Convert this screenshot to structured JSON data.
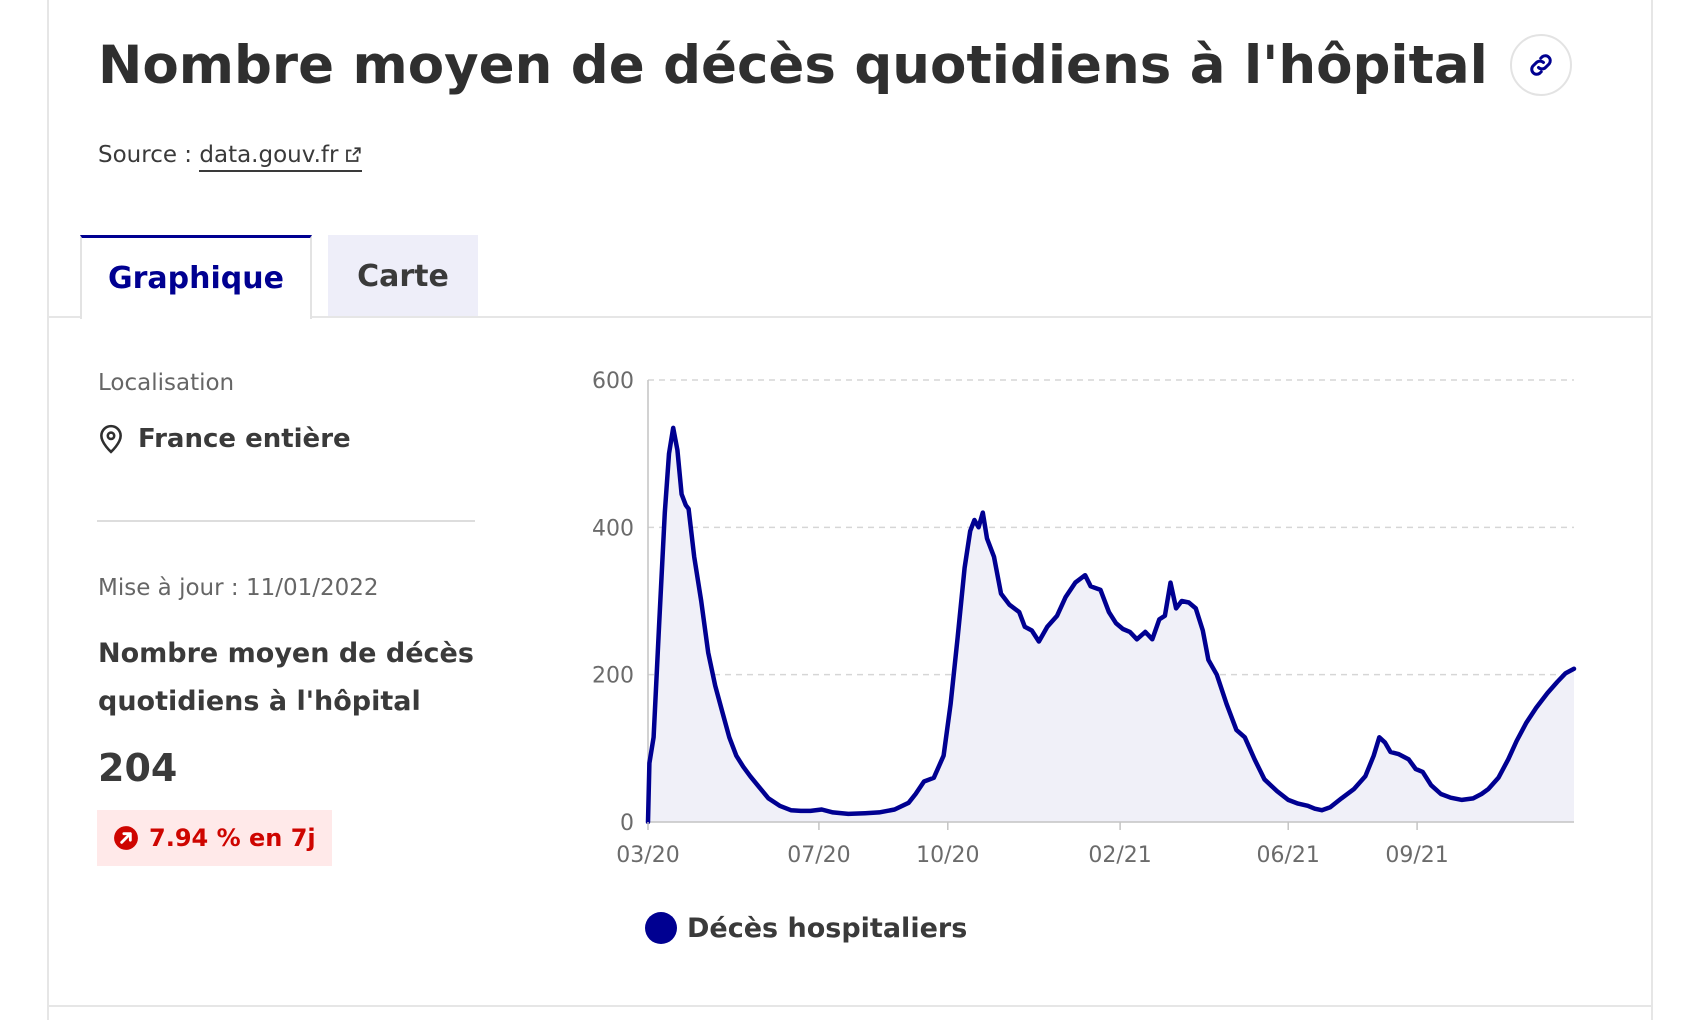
{
  "title": "Nombre moyen de décès quotidiens à l'hôpital",
  "source": {
    "prefix": "Source :",
    "link_text": "data.gouv.fr"
  },
  "tabs": [
    {
      "label": "Graphique",
      "active": true
    },
    {
      "label": "Carte",
      "active": false
    }
  ],
  "sidebar": {
    "location_label": "Localisation",
    "location_value": "France entière",
    "update_text": "Mise à jour : 11/01/2022",
    "indicator_title": "Nombre moyen de décès quotidiens à l'hôpital",
    "indicator_value": "204",
    "trend_text": "7.94 % en 7j"
  },
  "colors": {
    "accent": "#000091",
    "area_fill": "#f0f0f8",
    "trend_red": "#ce0500",
    "trend_bg": "#ffe9e9",
    "inactive_tab_bg": "#eeeef9"
  },
  "icons": {
    "link": "link-icon",
    "external": "external-link-icon",
    "location": "location-pin-icon",
    "trend": "trend-up-arrow-icon"
  },
  "chart_data": {
    "type": "area",
    "ylim": [
      0,
      600
    ],
    "yticks": [
      0,
      200,
      400,
      600
    ],
    "x_ticks": [
      {
        "label": "03/20",
        "date": "2020-03-18"
      },
      {
        "label": "07/20",
        "date": "2020-07-18"
      },
      {
        "label": "10/20",
        "date": "2020-10-18"
      },
      {
        "label": "02/21",
        "date": "2021-02-18"
      },
      {
        "label": "06/21",
        "date": "2021-06-18"
      },
      {
        "label": "09/21",
        "date": "2021-09-18"
      }
    ],
    "x_range": [
      "2020-03-18",
      "2022-01-08"
    ],
    "grid": true,
    "legend_position": "bottom-left",
    "series": [
      {
        "name": "Décès hospitaliers",
        "points": [
          [
            "2020-03-18",
            0
          ],
          [
            "2020-03-19",
            80
          ],
          [
            "2020-03-22",
            115
          ],
          [
            "2020-03-26",
            270
          ],
          [
            "2020-03-30",
            420
          ],
          [
            "2020-04-02",
            500
          ],
          [
            "2020-04-05",
            535
          ],
          [
            "2020-04-08",
            505
          ],
          [
            "2020-04-11",
            445
          ],
          [
            "2020-04-14",
            430
          ],
          [
            "2020-04-16",
            425
          ],
          [
            "2020-04-20",
            360
          ],
          [
            "2020-04-25",
            300
          ],
          [
            "2020-04-30",
            230
          ],
          [
            "2020-05-05",
            185
          ],
          [
            "2020-05-10",
            150
          ],
          [
            "2020-05-15",
            115
          ],
          [
            "2020-05-20",
            90
          ],
          [
            "2020-05-25",
            75
          ],
          [
            "2020-05-30",
            62
          ],
          [
            "2020-06-05",
            48
          ],
          [
            "2020-06-12",
            32
          ],
          [
            "2020-06-20",
            22
          ],
          [
            "2020-06-28",
            16
          ],
          [
            "2020-07-05",
            15
          ],
          [
            "2020-07-12",
            15
          ],
          [
            "2020-07-20",
            17
          ],
          [
            "2020-07-28",
            13
          ],
          [
            "2020-08-08",
            11
          ],
          [
            "2020-08-20",
            12
          ],
          [
            "2020-08-30",
            13
          ],
          [
            "2020-09-10",
            17
          ],
          [
            "2020-09-20",
            26
          ],
          [
            "2020-09-25",
            38
          ],
          [
            "2020-10-01",
            55
          ],
          [
            "2020-10-08",
            60
          ],
          [
            "2020-10-15",
            90
          ],
          [
            "2020-10-20",
            160
          ],
          [
            "2020-10-25",
            250
          ],
          [
            "2020-10-30",
            345
          ],
          [
            "2020-11-03",
            395
          ],
          [
            "2020-11-06",
            410
          ],
          [
            "2020-11-09",
            400
          ],
          [
            "2020-11-12",
            420
          ],
          [
            "2020-11-15",
            385
          ],
          [
            "2020-11-20",
            360
          ],
          [
            "2020-11-25",
            310
          ],
          [
            "2020-12-01",
            295
          ],
          [
            "2020-12-08",
            285
          ],
          [
            "2020-12-12",
            265
          ],
          [
            "2020-12-17",
            260
          ],
          [
            "2020-12-22",
            245
          ],
          [
            "2020-12-28",
            265
          ],
          [
            "2021-01-04",
            280
          ],
          [
            "2021-01-10",
            305
          ],
          [
            "2021-01-17",
            325
          ],
          [
            "2021-01-24",
            335
          ],
          [
            "2021-01-28",
            320
          ],
          [
            "2021-02-04",
            315
          ],
          [
            "2021-02-10",
            285
          ],
          [
            "2021-02-15",
            270
          ],
          [
            "2021-02-20",
            262
          ],
          [
            "2021-02-25",
            258
          ],
          [
            "2021-03-02",
            248
          ],
          [
            "2021-03-08",
            258
          ],
          [
            "2021-03-13",
            248
          ],
          [
            "2021-03-18",
            275
          ],
          [
            "2021-03-22",
            280
          ],
          [
            "2021-03-26",
            325
          ],
          [
            "2021-03-30",
            290
          ],
          [
            "2021-04-03",
            300
          ],
          [
            "2021-04-08",
            298
          ],
          [
            "2021-04-13",
            290
          ],
          [
            "2021-04-18",
            260
          ],
          [
            "2021-04-22",
            220
          ],
          [
            "2021-04-28",
            200
          ],
          [
            "2021-05-05",
            160
          ],
          [
            "2021-05-12",
            125
          ],
          [
            "2021-05-18",
            115
          ],
          [
            "2021-05-25",
            85
          ],
          [
            "2021-06-01",
            58
          ],
          [
            "2021-06-10",
            42
          ],
          [
            "2021-06-18",
            30
          ],
          [
            "2021-06-25",
            25
          ],
          [
            "2021-07-02",
            22
          ],
          [
            "2021-07-07",
            18
          ],
          [
            "2021-07-12",
            16
          ],
          [
            "2021-07-18",
            20
          ],
          [
            "2021-07-26",
            32
          ],
          [
            "2021-08-04",
            45
          ],
          [
            "2021-08-12",
            62
          ],
          [
            "2021-08-18",
            90
          ],
          [
            "2021-08-22",
            115
          ],
          [
            "2021-08-26",
            108
          ],
          [
            "2021-08-30",
            95
          ],
          [
            "2021-09-05",
            92
          ],
          [
            "2021-09-12",
            85
          ],
          [
            "2021-09-17",
            72
          ],
          [
            "2021-09-22",
            68
          ],
          [
            "2021-09-28",
            50
          ],
          [
            "2021-10-05",
            38
          ],
          [
            "2021-10-12",
            33
          ],
          [
            "2021-10-20",
            30
          ],
          [
            "2021-10-28",
            32
          ],
          [
            "2021-11-03",
            38
          ],
          [
            "2021-11-08",
            45
          ],
          [
            "2021-11-15",
            60
          ],
          [
            "2021-11-22",
            85
          ],
          [
            "2021-11-28",
            110
          ],
          [
            "2021-12-05",
            135
          ],
          [
            "2021-12-12",
            155
          ],
          [
            "2021-12-20",
            175
          ],
          [
            "2021-12-27",
            190
          ],
          [
            "2022-01-02",
            202
          ],
          [
            "2022-01-08",
            208
          ]
        ]
      }
    ]
  }
}
